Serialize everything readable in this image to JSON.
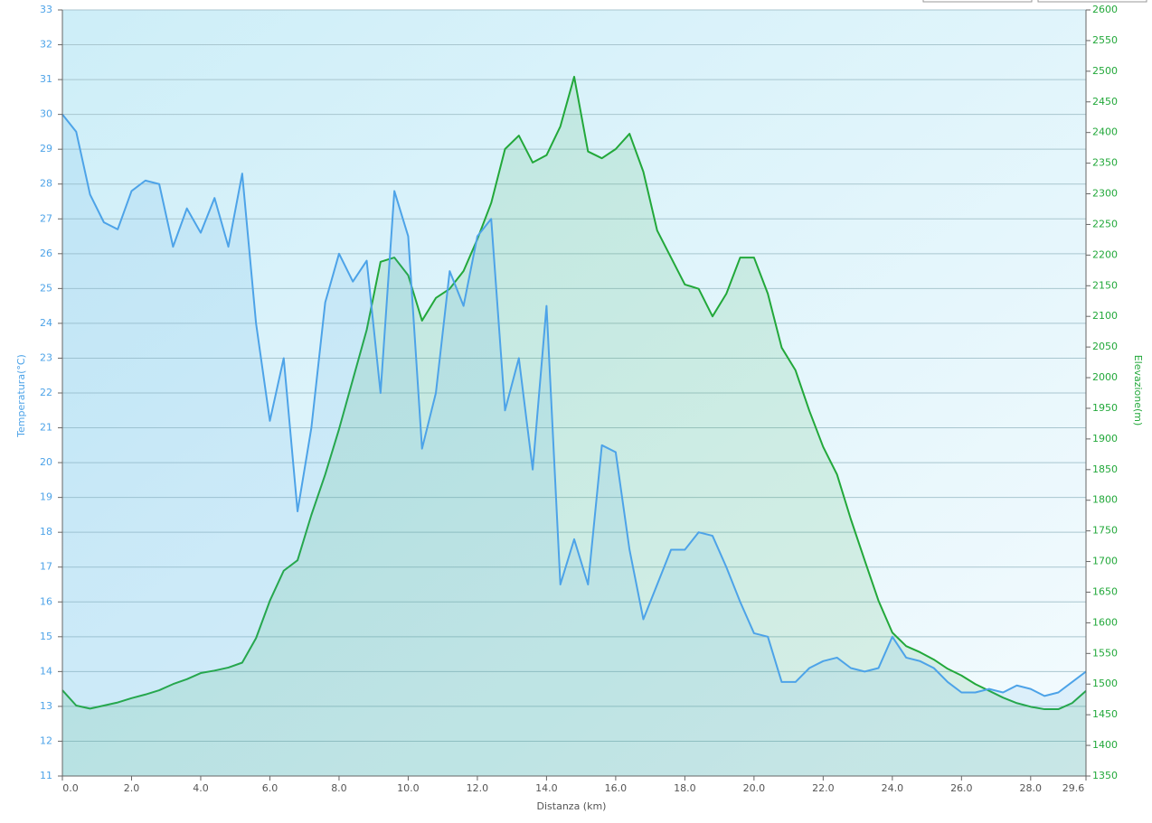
{
  "chart_data": {
    "type": "line",
    "xlabel": "Distanza  (km)",
    "ylabel": "Temperatura(°C)",
    "y2label": "Elevazione(m)",
    "x": [
      0,
      0.4,
      0.8,
      1.2,
      1.6,
      2.0,
      2.4,
      2.8,
      3.2,
      3.6,
      4.0,
      4.4,
      4.8,
      5.2,
      5.6,
      6.0,
      6.4,
      6.8,
      7.2,
      7.6,
      8.0,
      8.4,
      8.8,
      9.2,
      9.6,
      10.0,
      10.4,
      10.8,
      11.2,
      11.6,
      12.0,
      12.4,
      12.8,
      13.2,
      13.6,
      14.0,
      14.4,
      14.8,
      15.2,
      15.6,
      16.0,
      16.4,
      16.8,
      17.2,
      17.6,
      18.0,
      18.4,
      18.8,
      19.2,
      19.6,
      20.0,
      20.4,
      20.8,
      21.2,
      21.6,
      22.0,
      22.4,
      22.8,
      23.2,
      23.6,
      24.0,
      24.4,
      24.8,
      25.2,
      25.6,
      26.0,
      26.4,
      26.8,
      27.2,
      27.6,
      28.0,
      28.4,
      28.8,
      29.2,
      29.6
    ],
    "series": [
      {
        "name": "Temperatura",
        "color": "#4da3e8",
        "axis": "y",
        "values": [
          30,
          29.5,
          27.7,
          26.9,
          26.7,
          27.8,
          28.1,
          28.0,
          26.2,
          27.3,
          26.6,
          27.6,
          26.2,
          28.3,
          24.0,
          21.2,
          23.0,
          18.6,
          21.0,
          24.6,
          26.0,
          25.2,
          25.8,
          22.0,
          27.8,
          26.5,
          20.4,
          22.0,
          25.5,
          24.5,
          26.5,
          27.0,
          21.5,
          23.0,
          19.8,
          24.5,
          16.5,
          17.8,
          16.5,
          20.5,
          20.3,
          17.5,
          15.5,
          16.5,
          17.5,
          17.5,
          18.0,
          17.9,
          17.0,
          16.0,
          15.1,
          15.0,
          13.7,
          13.7,
          14.1,
          14.3,
          14.4,
          14.1,
          14.0,
          14.1,
          15.0,
          14.4,
          14.3,
          14.1,
          13.7,
          13.4,
          13.4,
          13.5,
          13.4,
          13.6,
          13.5,
          13.3,
          13.4,
          13.7,
          14.0
        ]
      },
      {
        "name": "Elevazione",
        "color": "#22a83a",
        "axis": "y2",
        "values": [
          1490,
          1465,
          1460,
          1465,
          1470,
          1477,
          1483,
          1490,
          1500,
          1508,
          1518,
          1522,
          1527,
          1535,
          1575,
          1636,
          1685,
          1702,
          1776,
          1842,
          1916,
          1997,
          2078,
          2189,
          2196,
          2167,
          2093,
          2130,
          2145,
          2174,
          2226,
          2285,
          2373,
          2395,
          2351,
          2363,
          2410,
          2491,
          2369,
          2358,
          2373,
          2398,
          2336,
          2240,
          2196,
          2152,
          2145,
          2100,
          2137,
          2196,
          2196,
          2137,
          2049,
          2012,
          1946,
          1887,
          1842,
          1769,
          1702,
          1636,
          1584,
          1562,
          1552,
          1540,
          1525,
          1514,
          1500,
          1489,
          1478,
          1469,
          1463,
          1459,
          1459,
          1469,
          1489
        ]
      }
    ],
    "xlim": [
      0,
      29.6
    ],
    "xticks": [
      {
        "value": 0,
        "label": "0.0"
      },
      {
        "value": 2,
        "label": "2.0"
      },
      {
        "value": 4,
        "label": "4.0"
      },
      {
        "value": 6,
        "label": "6.0"
      },
      {
        "value": 8,
        "label": "8.0"
      },
      {
        "value": 10,
        "label": "10.0"
      },
      {
        "value": 12,
        "label": "12.0"
      },
      {
        "value": 14,
        "label": "14.0"
      },
      {
        "value": 16,
        "label": "16.0"
      },
      {
        "value": 18,
        "label": "18.0"
      },
      {
        "value": 20,
        "label": "20.0"
      },
      {
        "value": 22,
        "label": "22.0"
      },
      {
        "value": 24,
        "label": "24.0"
      },
      {
        "value": 26,
        "label": "26.0"
      },
      {
        "value": 28,
        "label": "28.0"
      },
      29.6
    ],
    "ylim": [
      11,
      33
    ],
    "yticks": [
      11,
      12,
      13,
      14,
      15,
      16,
      17,
      18,
      19,
      20,
      21,
      22,
      23,
      24,
      25,
      26,
      27,
      28,
      29,
      30,
      31,
      32,
      33
    ],
    "y2lim": [
      1350,
      2600
    ],
    "y2ticks": [
      1350,
      1400,
      1450,
      1500,
      1550,
      1600,
      1650,
      1700,
      1750,
      1800,
      1850,
      1900,
      1950,
      2000,
      2050,
      2100,
      2150,
      2200,
      2250,
      2300,
      2350,
      2400,
      2450,
      2500,
      2550,
      2600
    ],
    "grid": true
  }
}
